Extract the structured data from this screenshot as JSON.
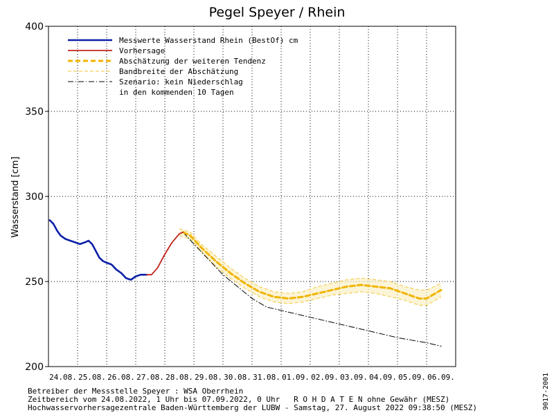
{
  "chart_data": {
    "type": "line",
    "title": "Pegel Speyer / Rhein",
    "ylabel": "Wasserstand [cm]",
    "ylim": [
      200,
      400
    ],
    "yticks": [
      200,
      250,
      300,
      350,
      400
    ],
    "xlim": [
      "2022-08-24 00:00",
      "2022-09-07 00:00"
    ],
    "xtick_labels": [
      "24.08.",
      "25.08.",
      "26.08.",
      "27.08.",
      "28.08.",
      "29.08.",
      "30.08.",
      "31.08.",
      "01.09.",
      "02.09.",
      "03.09.",
      "04.09.",
      "05.09.",
      "06.09."
    ],
    "grid": true,
    "legend_position": "top-left",
    "series": [
      {
        "name": "Messwerte Wasserstand Rhein (BestOf)  cm",
        "style": "solid",
        "color": "#0a1fa8",
        "points": [
          [
            "2022-08-24 01:00",
            286
          ],
          [
            "2022-08-24 04:00",
            284
          ],
          [
            "2022-08-24 07:00",
            280
          ],
          [
            "2022-08-24 10:00",
            277
          ],
          [
            "2022-08-24 14:00",
            275
          ],
          [
            "2022-08-24 18:00",
            274
          ],
          [
            "2022-08-24 22:00",
            273
          ],
          [
            "2022-08-25 02:00",
            272
          ],
          [
            "2022-08-25 06:00",
            273
          ],
          [
            "2022-08-25 09:00",
            274
          ],
          [
            "2022-08-25 12:00",
            272
          ],
          [
            "2022-08-25 15:00",
            268
          ],
          [
            "2022-08-25 18:00",
            264
          ],
          [
            "2022-08-25 21:00",
            262
          ],
          [
            "2022-08-26 00:00",
            261
          ],
          [
            "2022-08-26 04:00",
            260
          ],
          [
            "2022-08-26 08:00",
            257
          ],
          [
            "2022-08-26 12:00",
            255
          ],
          [
            "2022-08-26 16:00",
            252
          ],
          [
            "2022-08-26 20:00",
            251
          ],
          [
            "2022-08-27 00:00",
            253
          ],
          [
            "2022-08-27 04:00",
            254
          ],
          [
            "2022-08-27 07:00",
            254
          ],
          [
            "2022-08-27 09:00",
            254
          ]
        ]
      },
      {
        "name": "Vorhersage",
        "style": "solid",
        "color": "#c0221a",
        "points": [
          [
            "2022-08-27 09:00",
            254
          ],
          [
            "2022-08-27 13:00",
            254
          ],
          [
            "2022-08-27 18:00",
            258
          ],
          [
            "2022-08-28 00:00",
            266
          ],
          [
            "2022-08-28 06:00",
            273
          ],
          [
            "2022-08-28 12:00",
            278
          ],
          [
            "2022-08-28 15:00",
            279
          ]
        ]
      },
      {
        "name": "Abschätzung der weiteren Tendenz",
        "style": "dashed-thick",
        "color": "#f0b400",
        "points": [
          [
            "2022-08-28 15:00",
            279
          ],
          [
            "2022-08-28 21:00",
            277
          ],
          [
            "2022-08-29 06:00",
            270
          ],
          [
            "2022-08-29 18:00",
            262
          ],
          [
            "2022-08-30 06:00",
            255
          ],
          [
            "2022-08-30 18:00",
            249
          ],
          [
            "2022-08-31 06:00",
            244
          ],
          [
            "2022-08-31 18:00",
            241
          ],
          [
            "2022-09-01 06:00",
            240
          ],
          [
            "2022-09-01 18:00",
            241
          ],
          [
            "2022-09-02 06:00",
            243
          ],
          [
            "2022-09-02 18:00",
            245
          ],
          [
            "2022-09-03 06:00",
            247
          ],
          [
            "2022-09-03 18:00",
            248
          ],
          [
            "2022-09-04 06:00",
            247
          ],
          [
            "2022-09-04 18:00",
            246
          ],
          [
            "2022-09-05 06:00",
            243
          ],
          [
            "2022-09-05 18:00",
            240
          ],
          [
            "2022-09-06 00:00",
            240
          ],
          [
            "2022-09-06 12:00",
            245
          ]
        ]
      },
      {
        "name": "Bandbreite der Abschätzung",
        "style": "dashed-thin",
        "color": "#f3cf5a",
        "band_upper": [
          [
            "2022-08-28 12:00",
            281
          ],
          [
            "2022-08-28 21:00",
            279
          ],
          [
            "2022-08-29 06:00",
            272
          ],
          [
            "2022-08-29 18:00",
            265
          ],
          [
            "2022-08-30 06:00",
            258
          ],
          [
            "2022-08-30 18:00",
            252
          ],
          [
            "2022-08-31 06:00",
            247
          ],
          [
            "2022-08-31 18:00",
            244
          ],
          [
            "2022-09-01 06:00",
            243
          ],
          [
            "2022-09-01 18:00",
            244
          ],
          [
            "2022-09-02 06:00",
            247
          ],
          [
            "2022-09-02 18:00",
            249
          ],
          [
            "2022-09-03 06:00",
            251
          ],
          [
            "2022-09-03 18:00",
            252
          ],
          [
            "2022-09-04 06:00",
            251
          ],
          [
            "2022-09-04 18:00",
            250
          ],
          [
            "2022-09-05 06:00",
            247
          ],
          [
            "2022-09-05 18:00",
            245
          ],
          [
            "2022-09-06 00:00",
            245
          ],
          [
            "2022-09-06 12:00",
            249
          ]
        ],
        "band_lower": [
          [
            "2022-08-28 12:00",
            277
          ],
          [
            "2022-08-28 21:00",
            275
          ],
          [
            "2022-08-29 06:00",
            268
          ],
          [
            "2022-08-29 18:00",
            259
          ],
          [
            "2022-08-30 06:00",
            252
          ],
          [
            "2022-08-30 18:00",
            246
          ],
          [
            "2022-08-31 06:00",
            241
          ],
          [
            "2022-08-31 18:00",
            238
          ],
          [
            "2022-09-01 06:00",
            237
          ],
          [
            "2022-09-01 18:00",
            238
          ],
          [
            "2022-09-02 06:00",
            240
          ],
          [
            "2022-09-02 18:00",
            242
          ],
          [
            "2022-09-03 06:00",
            243
          ],
          [
            "2022-09-03 18:00",
            244
          ],
          [
            "2022-09-04 06:00",
            243
          ],
          [
            "2022-09-04 18:00",
            241
          ],
          [
            "2022-09-05 06:00",
            239
          ],
          [
            "2022-09-05 18:00",
            236
          ],
          [
            "2022-09-06 00:00",
            236
          ],
          [
            "2022-09-06 12:00",
            241
          ]
        ]
      },
      {
        "name": "Szenario: kein Niederschlag",
        "name_line2": "in den kommenden 10 Tagen",
        "style": "dash-dot",
        "color": "#000000",
        "points": [
          [
            "2022-08-28 15:00",
            279
          ],
          [
            "2022-08-29 00:00",
            272
          ],
          [
            "2022-08-29 12:00",
            263
          ],
          [
            "2022-08-30 00:00",
            254
          ],
          [
            "2022-08-30 12:00",
            247
          ],
          [
            "2022-08-31 00:00",
            240
          ],
          [
            "2022-08-31 12:00",
            235
          ],
          [
            "2022-09-01 00:00",
            233
          ],
          [
            "2022-09-02 00:00",
            229
          ],
          [
            "2022-09-03 00:00",
            225
          ],
          [
            "2022-09-04 00:00",
            221
          ],
          [
            "2022-09-05 00:00",
            217
          ],
          [
            "2022-09-06 00:00",
            214
          ],
          [
            "2022-09-06 12:00",
            212
          ]
        ]
      }
    ]
  },
  "footer": {
    "line1": "Betreiber der Messstelle Speyer : WSA Oberrhein",
    "line2": "Zeitbereich vom 24.08.2022, 1 Uhr bis 07.09.2022, 0 Uhr   R O H D A T E N ohne Gewähr (MESZ)",
    "line3": "Hochwasservorhersagezentrale Baden-Württemberg der LUBW - Samstag, 27. August 2022 09:38:50 (MESZ)"
  },
  "side_code": "9017-2001"
}
